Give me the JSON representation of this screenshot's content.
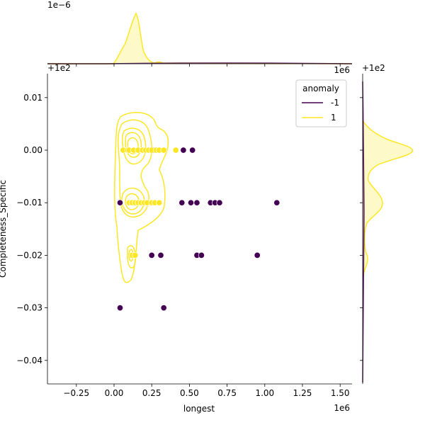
{
  "chart_data": {
    "type": "scatter",
    "title": "",
    "xlabel": "longest",
    "ylabel": "Completeness_Specific",
    "x_scale_label": "1e6",
    "y_offset_label": "+1e2",
    "x_offset_label": "+1e2",
    "top_marginal_scale_label": "1e−6",
    "xlim": [
      -0.45,
      1.57
    ],
    "ylim": [
      -0.0445,
      0.0145
    ],
    "x_ticks": [
      "−0.25",
      "0.00",
      "0.25",
      "0.50",
      "0.75",
      "1.00",
      "1.25",
      "1.50"
    ],
    "x_tick_values": [
      -0.25,
      0.0,
      0.25,
      0.5,
      0.75,
      1.0,
      1.25,
      1.5
    ],
    "y_ticks": [
      "0.01",
      "0.00",
      "−0.01",
      "−0.02",
      "−0.03",
      "−0.04"
    ],
    "y_tick_values": [
      0.01,
      0.0,
      -0.01,
      -0.02,
      -0.03,
      -0.04
    ],
    "grid": false,
    "legend": {
      "title": "anomaly",
      "position": "upper right",
      "entries": [
        {
          "label": "-1",
          "color": "#440154"
        },
        {
          "label": "1",
          "color": "#fde725"
        }
      ]
    },
    "series": [
      {
        "name": "-1",
        "color": "#440154",
        "points": [
          [
            0.26,
            0.0
          ],
          [
            0.46,
            0.0
          ],
          [
            0.52,
            0.0
          ],
          [
            0.04,
            -0.01
          ],
          [
            0.45,
            -0.01
          ],
          [
            0.51,
            -0.01
          ],
          [
            0.55,
            -0.01
          ],
          [
            0.64,
            -0.01
          ],
          [
            0.67,
            -0.01
          ],
          [
            0.7,
            -0.01
          ],
          [
            1.08,
            -0.01
          ],
          [
            0.25,
            -0.02
          ],
          [
            0.31,
            -0.02
          ],
          [
            0.55,
            -0.02
          ],
          [
            0.58,
            -0.02
          ],
          [
            0.95,
            -0.02
          ],
          [
            0.04,
            -0.03
          ],
          [
            0.33,
            -0.03
          ]
        ]
      },
      {
        "name": "1",
        "color": "#fde725",
        "points": [
          [
            0.06,
            0.0
          ],
          [
            0.09,
            0.0
          ],
          [
            0.1,
            0.0
          ],
          [
            0.13,
            0.0
          ],
          [
            0.16,
            0.0
          ],
          [
            0.19,
            0.0
          ],
          [
            0.21,
            0.0
          ],
          [
            0.23,
            0.0
          ],
          [
            0.25,
            0.0
          ],
          [
            0.28,
            0.0
          ],
          [
            0.3,
            0.0
          ],
          [
            0.33,
            0.0
          ],
          [
            0.41,
            0.0
          ],
          [
            0.1,
            -0.01
          ],
          [
            0.12,
            -0.01
          ],
          [
            0.14,
            -0.01
          ],
          [
            0.16,
            -0.01
          ],
          [
            0.18,
            -0.01
          ],
          [
            0.2,
            -0.01
          ],
          [
            0.22,
            -0.01
          ],
          [
            0.25,
            -0.01
          ],
          [
            0.27,
            -0.01
          ],
          [
            0.3,
            -0.01
          ],
          [
            0.12,
            -0.02
          ],
          [
            0.14,
            -0.02
          ]
        ]
      }
    ],
    "marginal_x": {
      "description": "KDE of longest by anomaly; class 1 peaks near 0.15e6 (~1.1e-6 density), class -1 nearly flat",
      "scale": "1e−6"
    },
    "marginal_y": {
      "description": "KDE of Completeness_Specific by anomaly; class 1 peaks at 0.00 (largest) and -0.01 (secondary), small bump at -0.02; class -1 nearly flat"
    }
  }
}
